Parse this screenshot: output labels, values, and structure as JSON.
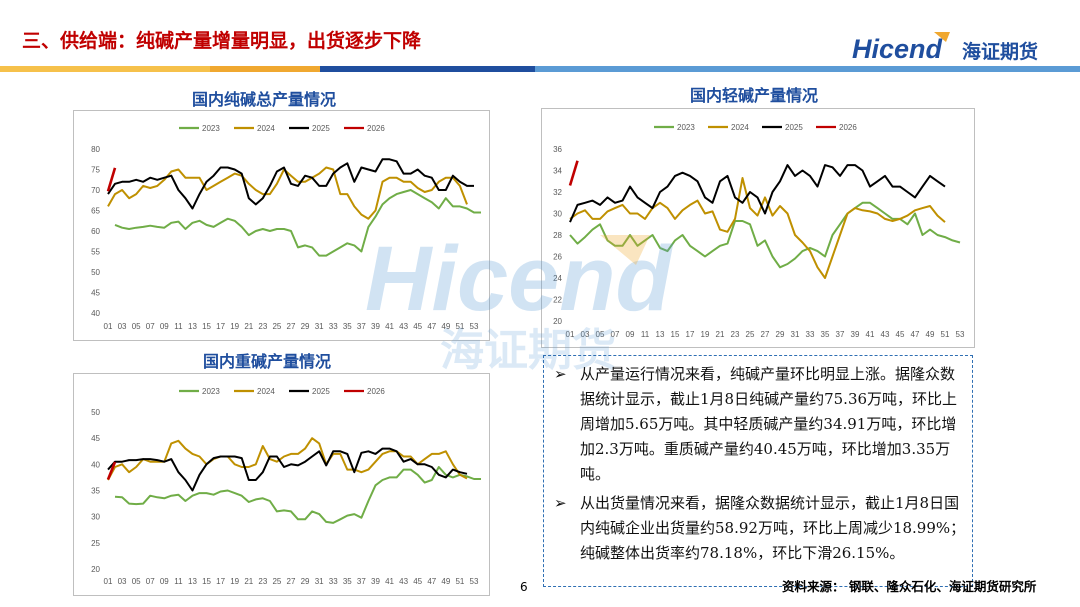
{
  "header": {
    "title": "三、供给端：纯碱产量增量明显，出货逐步下降",
    "logo_text": "Hicend",
    "logo_cn": "海证期货",
    "bar_colors": [
      "#f6c14b",
      "#f0a830",
      "#1f4e9e",
      "#5b9bd5"
    ]
  },
  "watermark": {
    "text": "Hicend",
    "cn": "海证期货"
  },
  "charts": {
    "total": {
      "title": "国内纯碱总产量情况"
    },
    "light": {
      "title": "国内轻碱产量情况"
    },
    "heavy": {
      "title": "国内重碱产量情况"
    }
  },
  "commentary": {
    "arrow": "➢",
    "para1": "从产量运行情况来看，纯碱产量环比明显上涨。据隆众数据统计显示，截止1月8日纯碱产量约75.36万吨，环比上周增加5.65万吨。其中轻质碱产量约34.91万吨，环比增加2.3万吨。重质碱产量约40.45万吨，环比增加3.35万吨。",
    "para2": "从出货量情况来看，据隆众数据统计显示，截止1月8日国内纯碱企业出货量约58.92万吨，环比上周减少18.99%；纯碱整体出货率约78.18%，环比下滑26.15%。"
  },
  "footer": {
    "page_number": "6",
    "source": "资料来源：  钢联、隆众石化、海证期货研究所"
  },
  "chart_data": [
    {
      "type": "line",
      "title": "国内纯碱总产量情况",
      "x_ticks": [
        "01",
        "03",
        "05",
        "07",
        "09",
        "11",
        "13",
        "15",
        "17",
        "19",
        "21",
        "23",
        "25",
        "27",
        "29",
        "31",
        "33",
        "35",
        "37",
        "39",
        "41",
        "43",
        "45",
        "47",
        "49",
        "51",
        "53"
      ],
      "ylim": [
        40,
        80
      ],
      "y_ticks": [
        40,
        45,
        50,
        55,
        60,
        65,
        70,
        75,
        80
      ],
      "legend_position": "top",
      "grid": false,
      "series": [
        {
          "name": "2023",
          "color": "#70ad47",
          "start_week": 2,
          "values": [
            61.5,
            60.8,
            60.5,
            60.8,
            61,
            61.3,
            61,
            60.8,
            62,
            62.3,
            60.5,
            62,
            62.5,
            61.5,
            61,
            62,
            63,
            62.5,
            61,
            59,
            60,
            60.5,
            60,
            60.5,
            60.5,
            60,
            56,
            56.5,
            56,
            54,
            54,
            55,
            56,
            57,
            56.5,
            55,
            61,
            63.5,
            66.5,
            68,
            69,
            69.5,
            70,
            69,
            68,
            67,
            65.5,
            68,
            66,
            66,
            65.5,
            64.5,
            64.5
          ]
        },
        {
          "name": "2024",
          "color": "#bf9000",
          "start_week": 1,
          "values": [
            66,
            69,
            70,
            68,
            69,
            71,
            70.5,
            71,
            72.5,
            74.5,
            75,
            73,
            73,
            73,
            70,
            71,
            72,
            73,
            74,
            73.5,
            71.5,
            70,
            69,
            69,
            71.5,
            75,
            73.5,
            72,
            72,
            73,
            74,
            75.5,
            75,
            69,
            69,
            66,
            64,
            63,
            65,
            72,
            73,
            73,
            72,
            72,
            70.5,
            69.5,
            70,
            72,
            73,
            73,
            71,
            66.5
          ]
        },
        {
          "name": "2025",
          "color": "#000000",
          "start_week": 1,
          "values": [
            69,
            71.5,
            72,
            72,
            72.5,
            72,
            73,
            72.5,
            73,
            73.5,
            70,
            68,
            65.5,
            69,
            72,
            73.5,
            75.5,
            75.5,
            75,
            74,
            68,
            66.5,
            68,
            71,
            74.5,
            75.5,
            71.5,
            71,
            73.5,
            73,
            71,
            71,
            74,
            75.5,
            76.5,
            72,
            75.5,
            75,
            74.5,
            77.5,
            77.5,
            77,
            74,
            74,
            75,
            73.5,
            73,
            70,
            70,
            73.5,
            72,
            71,
            71
          ]
        },
        {
          "name": "2026",
          "color": "#c00000",
          "start_week": 1,
          "values": [
            69.7,
            75.4
          ]
        }
      ]
    },
    {
      "type": "line",
      "title": "国内轻碱产量情况",
      "x_ticks": [
        "01",
        "03",
        "05",
        "07",
        "09",
        "11",
        "13",
        "15",
        "17",
        "19",
        "21",
        "23",
        "25",
        "27",
        "29",
        "31",
        "33",
        "35",
        "37",
        "39",
        "41",
        "43",
        "45",
        "47",
        "49",
        "51",
        "53"
      ],
      "ylim": [
        20,
        36
      ],
      "y_ticks": [
        20,
        22,
        24,
        26,
        28,
        30,
        32,
        34,
        36
      ],
      "legend_position": "top",
      "grid": false,
      "series": [
        {
          "name": "2023",
          "color": "#70ad47",
          "start_week": 1,
          "values": [
            28,
            27.2,
            27.8,
            28.5,
            29,
            27.5,
            27,
            27,
            28,
            27,
            27.5,
            28,
            26.8,
            26.5,
            27.5,
            28,
            27,
            26.5,
            26,
            26.5,
            27,
            27.2,
            29.3,
            29.3,
            29,
            27,
            27.5,
            26,
            25,
            25.3,
            25.8,
            26.5,
            26.8,
            26.5,
            26,
            28,
            29,
            30,
            30.5,
            31,
            31,
            30.5,
            30,
            29.5,
            29.5,
            29,
            30,
            28,
            28.5,
            28,
            27.8,
            27.5,
            27.3
          ]
        },
        {
          "name": "2024",
          "color": "#bf9000",
          "start_week": 1,
          "values": [
            29.5,
            30,
            30.3,
            29.5,
            29.5,
            30.2,
            30.5,
            30.8,
            30,
            30,
            29.5,
            30.5,
            31,
            30.5,
            29.5,
            30.3,
            30.8,
            31.2,
            30,
            30.2,
            28.5,
            28.3,
            29.5,
            33.3,
            30.5,
            29.8,
            31.5,
            29.8,
            30.7,
            30,
            28,
            27.3,
            26.5,
            25,
            24,
            26,
            28,
            30,
            30.5,
            30.3,
            30.2,
            30,
            29.5,
            29.3,
            29.5,
            29.8,
            30.3,
            30.5,
            30.7,
            29.8,
            29.2
          ]
        },
        {
          "name": "2025",
          "color": "#000000",
          "start_week": 1,
          "values": [
            29.2,
            30.8,
            31,
            31.2,
            30.8,
            31.5,
            31,
            31.2,
            32.5,
            31.5,
            31,
            30.5,
            32,
            32.5,
            33.5,
            33.8,
            33.5,
            33,
            31.5,
            31,
            33,
            33.5,
            31.5,
            31,
            32,
            31.5,
            30,
            32,
            33,
            34.5,
            33.5,
            34,
            33.5,
            32.5,
            34.5,
            34.3,
            33.5,
            34.5,
            34.5,
            34,
            32.5,
            33,
            33.5,
            32.5,
            32.5,
            32,
            31.5,
            32.5,
            33.5,
            33,
            32.5
          ]
        },
        {
          "name": "2026",
          "color": "#c00000",
          "start_week": 1,
          "values": [
            32.6,
            34.9
          ]
        }
      ]
    },
    {
      "type": "line",
      "title": "国内重碱产量情况",
      "x_ticks": [
        "01",
        "03",
        "05",
        "07",
        "09",
        "11",
        "13",
        "15",
        "17",
        "19",
        "21",
        "23",
        "25",
        "27",
        "29",
        "31",
        "33",
        "35",
        "37",
        "39",
        "41",
        "43",
        "45",
        "47",
        "49",
        "51",
        "53"
      ],
      "ylim": [
        20,
        50
      ],
      "y_ticks": [
        20,
        25,
        30,
        35,
        40,
        45,
        50
      ],
      "legend_position": "top",
      "grid": false,
      "series": [
        {
          "name": "2023",
          "color": "#70ad47",
          "start_week": 2,
          "values": [
            33.8,
            33.7,
            32.5,
            32.4,
            32.5,
            34,
            33.7,
            33.5,
            34,
            34.2,
            33,
            34,
            34.5,
            34.5,
            34.2,
            34.8,
            35,
            34.5,
            34,
            32.8,
            33.3,
            33.5,
            33,
            31,
            31.2,
            31,
            29.5,
            29.5,
            31,
            30.5,
            29,
            28.8,
            29.5,
            30.2,
            30.5,
            29.8,
            33,
            36,
            37,
            37.5,
            37.5,
            39,
            39,
            38,
            36.5,
            37,
            39.5,
            38,
            37.5,
            38,
            37.7,
            37.2,
            37.2
          ]
        },
        {
          "name": "2024",
          "color": "#bf9000",
          "start_week": 1,
          "values": [
            37,
            39.5,
            40,
            38.5,
            39.5,
            41,
            40.5,
            40.5,
            40.5,
            44,
            44.5,
            43,
            42,
            41.5,
            40,
            41,
            41.5,
            41.5,
            40,
            39.5,
            39.5,
            40,
            43.5,
            41,
            40.5,
            41.5,
            42,
            42,
            43,
            45,
            44,
            40,
            42,
            42,
            39,
            39,
            38.5,
            39,
            40.5,
            42,
            42.5,
            42.5,
            41.5,
            41.5,
            40,
            41,
            42,
            42,
            42.5,
            40,
            38,
            37.3
          ]
        },
        {
          "name": "2025",
          "color": "#000000",
          "start_week": 1,
          "values": [
            39,
            40.5,
            40.5,
            40.8,
            40.8,
            41,
            41,
            40.8,
            40.5,
            41,
            38.5,
            37,
            35,
            38,
            40,
            41.2,
            41.5,
            41.5,
            41.5,
            41.2,
            37,
            37,
            38.5,
            41.5,
            41.5,
            39.5,
            40,
            39.8,
            40.5,
            41.5,
            42.5,
            39.8,
            42.5,
            42.5,
            42,
            38.5,
            42.2,
            42.5,
            42,
            43,
            43,
            42.5,
            40.5,
            41,
            40,
            40,
            39.5,
            38,
            37.5,
            39,
            38.5,
            38.2
          ]
        },
        {
          "name": "2026",
          "color": "#c00000",
          "start_week": 1,
          "values": [
            37.1,
            40.45
          ]
        }
      ]
    }
  ]
}
